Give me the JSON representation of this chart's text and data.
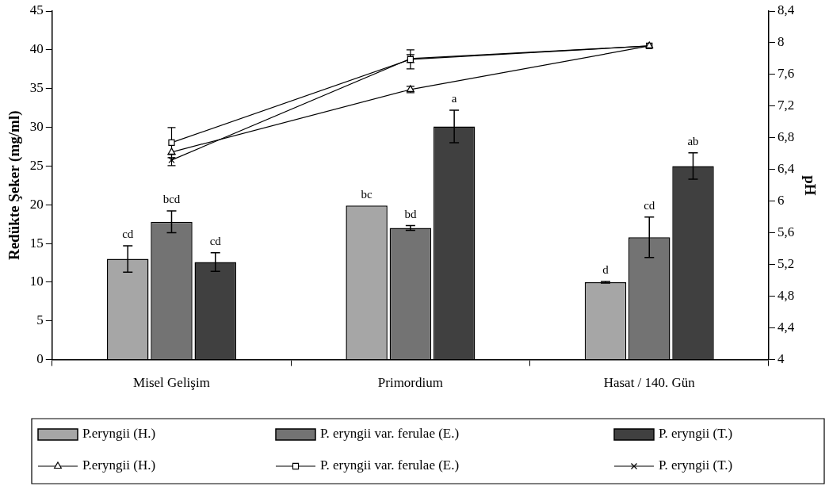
{
  "chart_data": {
    "type": "bar",
    "ylabel": "Redükte Şeker (mg/ml)",
    "y2label": "pH",
    "categories": [
      "Misel Gelişim",
      "Primordium",
      "Hasat / 140. Gün"
    ],
    "series": [
      {
        "name": "P.eryngii (H.)",
        "color": "#a6a6a6",
        "values": [
          13,
          19.9,
          10
        ],
        "errors": [
          1.7,
          null,
          0.1
        ],
        "value_labels": [
          "cd",
          "bc",
          "d"
        ]
      },
      {
        "name": "P. eryngii var. ferulae (E.)",
        "color": "#737373",
        "values": [
          17.8,
          17,
          15.8
        ],
        "errors": [
          1.4,
          0.3,
          2.6
        ],
        "value_labels": [
          "bcd",
          "bd",
          "cd"
        ]
      },
      {
        "name": "P. eryngii (T.)",
        "color": "#404040",
        "values": [
          12.6,
          30.1,
          25
        ],
        "errors": [
          1.2,
          2.1,
          1.7
        ],
        "value_labels": [
          "cd",
          "a",
          "ab"
        ]
      },
      {
        "name": "P.eryngii (H.)",
        "type": "line",
        "axis": "y2",
        "marker": "triangle",
        "color": "#000000",
        "values": [
          6.62,
          7.41,
          7.96
        ],
        "errors": [
          null,
          0.04,
          null
        ]
      },
      {
        "name": "P. eryngii var. ferulae (E.)",
        "type": "line",
        "axis": "y2",
        "marker": "square",
        "color": "#000000",
        "values": [
          6.74,
          7.79,
          7.96
        ],
        "errors": [
          0.19,
          0.12,
          null
        ]
      },
      {
        "name": "P. eryngii (T.)",
        "type": "line",
        "axis": "y2",
        "marker": "cross",
        "color": "#000000",
        "values": [
          6.52,
          7.8,
          7.96
        ],
        "errors": [
          0.07,
          0.05,
          null
        ]
      }
    ],
    "ylim": [
      0,
      45
    ],
    "yticks": [
      0,
      5,
      10,
      15,
      20,
      25,
      30,
      35,
      40,
      45
    ],
    "y2lim": [
      4,
      8.4
    ],
    "y2ticks": [
      {
        "value": 4,
        "label": "4"
      },
      {
        "value": 4.4,
        "label": "4,4"
      },
      {
        "value": 4.8,
        "label": "4,8"
      },
      {
        "value": 5.2,
        "label": "5,2"
      },
      {
        "value": 5.6,
        "label": "5,6"
      },
      {
        "value": 6,
        "label": "6"
      },
      {
        "value": 6.4,
        "label": "6,4"
      },
      {
        "value": 6.8,
        "label": "6,8"
      },
      {
        "value": 7.2,
        "label": "7,2"
      },
      {
        "value": 7.6,
        "label": "7,6"
      },
      {
        "value": 8,
        "label": "8"
      },
      {
        "value": 8.4,
        "label": "8,4"
      }
    ],
    "grid": false,
    "legend": "bottom"
  }
}
